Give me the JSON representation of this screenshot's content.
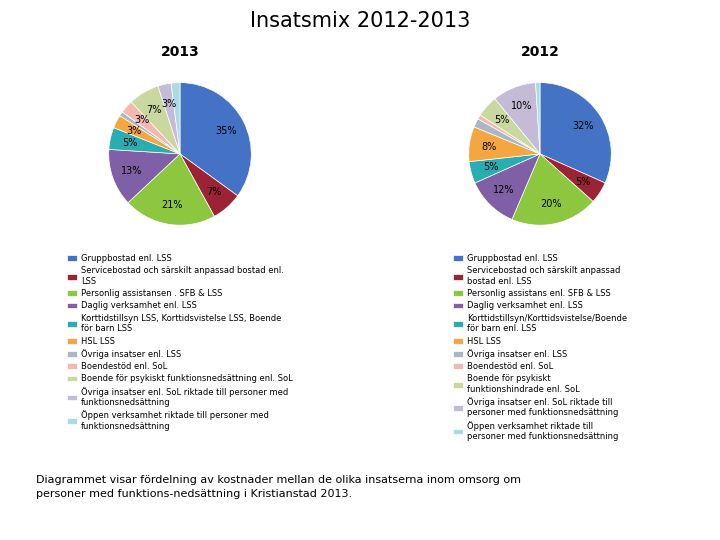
{
  "title": "Insatsmix 2012-2013",
  "subtitle": "Diagrammet visar fördelning av kostnader mellan de olika insatserna inom omsorg om\npersoner med funktions-nedsättning i Kristianstad 2013.",
  "chart_data": [
    {
      "type": "pie",
      "title": "2013",
      "labels": [
        "Gruppbostad enl. LSS",
        "Servicebostad och särskilt anpassad bostad enl.\nLSS",
        "Personlig assistansen . SFB & LSS",
        "Daglig verksamhet enl. LSS",
        "Korttidstillsyn LSS, Korttidsvistelse LSS, Boende\nför barn LSS",
        "HSL LSS",
        "Övriga insatser enl. LSS",
        "Boendestöd enl. SoL",
        "Boende för psykiskt funktionsnedsättning enl. SoL",
        "Övriga insatser enl. SoL riktade till personer med\nfunktionsnedsättning",
        "Öppen verksamhet riktade till personer med\nfunktionsnedsättning"
      ],
      "values": [
        35,
        7,
        21,
        13,
        5,
        3,
        1,
        3,
        7,
        3,
        2
      ],
      "value_labels": [
        "35%",
        "7%",
        "21%",
        "13%",
        "5%",
        "3%",
        null,
        "3%",
        "7%",
        "3%",
        null
      ],
      "colors": [
        "#4472c4",
        "#9b2335",
        "#8dc63f",
        "#7f5fa5",
        "#2aacb3",
        "#f4a740",
        "#a9b8c6",
        "#f4b8b0",
        "#c8d89e",
        "#c4bcd6",
        "#a8dce0"
      ],
      "data_labels": true,
      "legend": "upper center"
    },
    {
      "type": "pie",
      "title": "2012",
      "labels": [
        "Gruppbostad enl. LSS",
        "Servicebostad och särskilt anpassad\nbostad enl. LSS",
        "Personlig assistans enl. SFB & LSS",
        "Daglig verksamhet enl. LSS",
        "Korttidstillsyn/Korttidsvistelse/Boende\nför barn enl. LSS",
        "HSL LSS",
        "Övriga insatser enl. LSS",
        "Boendestöd enl. SoL",
        "Boende för psykiskt\nfunktionshindrade enl. SoL",
        "Övriga insatser enl. SoL riktade till\npersoner med funktionsnedsättning",
        "Öppen verksamhet riktade till\npersoner med funktionsnedsättning"
      ],
      "values": [
        32,
        5,
        20,
        12,
        5,
        8,
        2,
        1,
        5,
        10,
        1
      ],
      "value_labels": [
        "32%",
        "5%",
        "20%",
        "12%",
        "5%",
        "8%",
        null,
        null,
        "5%",
        "10%",
        null
      ],
      "colors": [
        "#4472c4",
        "#9b2335",
        "#8dc63f",
        "#7f5fa5",
        "#2aacb3",
        "#f4a740",
        "#a9b8c6",
        "#f4b8b0",
        "#c8d89e",
        "#c4bcd6",
        "#a8dce0"
      ],
      "data_labels": true,
      "legend": "upper center"
    }
  ]
}
